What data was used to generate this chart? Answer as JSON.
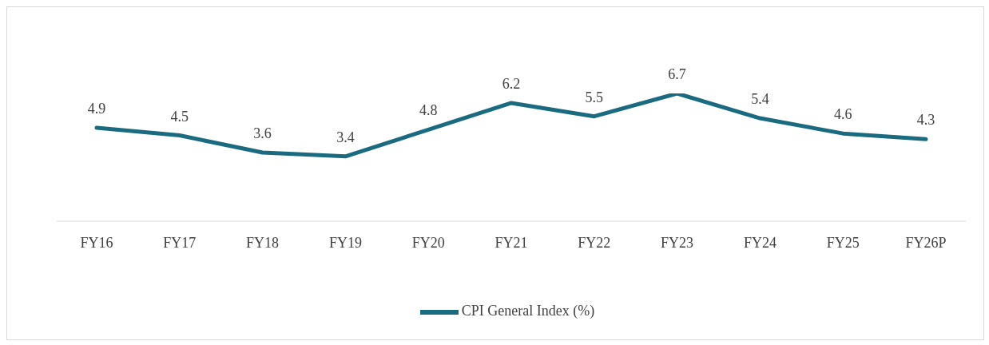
{
  "chart_data": {
    "type": "line",
    "categories": [
      "FY16",
      "FY17",
      "FY18",
      "FY19",
      "FY20",
      "FY21",
      "FY22",
      "FY23",
      "FY24",
      "FY25",
      "FY26P"
    ],
    "series": [
      {
        "name": "CPI General Index (%)",
        "color": "#1b6b80",
        "values": [
          4.9,
          4.5,
          3.6,
          3.4,
          4.8,
          6.2,
          5.5,
          6.7,
          5.4,
          4.6,
          4.3
        ]
      }
    ],
    "data_labels": true,
    "legend": "bottom",
    "grid": false,
    "marker": "none",
    "line_style": "solid"
  }
}
